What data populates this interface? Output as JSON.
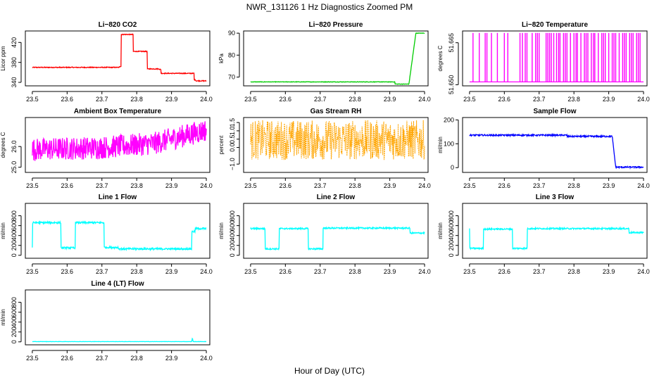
{
  "figure": {
    "title": "NWR_131126  1 Hz Diagnostics Zoomed PM",
    "xlabel": "Hour of Day (UTC)"
  },
  "colors": {
    "red": "#ff0000",
    "green": "#00cc00",
    "magenta": "#ff00ff",
    "orange": "#ffa500",
    "blue": "#0000ff",
    "cyan": "#00ffff"
  },
  "chart_data": [
    {
      "id": "co2",
      "type": "line",
      "title": "Li−820 CO2",
      "ylabel": "Licor ppm",
      "color": "red",
      "xlim": [
        23.48,
        24.01
      ],
      "ylim": [
        333,
        443
      ],
      "xticks": [
        "23.5",
        "23.6",
        "23.7",
        "23.8",
        "23.9",
        "24.0"
      ],
      "yticks": [
        "340",
        "380",
        "420"
      ],
      "yticks_v": [
        340,
        380,
        420
      ],
      "yticks_rot": true,
      "noise": 0.8,
      "x": [
        23.5,
        23.75,
        23.75,
        23.755,
        23.755,
        23.79,
        23.79,
        23.83,
        23.83,
        23.865,
        23.865,
        23.87,
        23.87,
        23.965,
        23.965,
        23.97,
        23.97,
        24.0
      ],
      "y": [
        370,
        370,
        372,
        372,
        436,
        436,
        402,
        402,
        367,
        367,
        366,
        366,
        358,
        358,
        345,
        345,
        343,
        343
      ]
    },
    {
      "id": "pressure",
      "type": "line",
      "title": "Li−820 Pressure",
      "ylabel": "kPa",
      "color": "green",
      "xlim": [
        23.48,
        24.01
      ],
      "ylim": [
        66,
        91
      ],
      "xticks": [
        "23.5",
        "23.6",
        "23.7",
        "23.8",
        "23.9",
        "24.0"
      ],
      "yticks": [
        "70",
        "80",
        "90"
      ],
      "yticks_v": [
        70,
        80,
        90
      ],
      "yticks_rot": false,
      "noise": 0.1,
      "x": [
        23.5,
        23.915,
        23.915,
        23.955,
        23.975,
        24.0
      ],
      "y": [
        67.8,
        67.8,
        66.8,
        66.8,
        90,
        90
      ]
    },
    {
      "id": "temp",
      "type": "line",
      "title": "Li−820 Temperature",
      "ylabel": "degrees C",
      "color": "magenta",
      "xlim": [
        23.48,
        24.01
      ],
      "ylim": [
        51.6496,
        51.6692
      ],
      "xticks": [
        "23.5",
        "23.6",
        "23.7",
        "23.8",
        "23.9",
        "24.0"
      ],
      "yticks": [
        "51.650",
        "51.665"
      ],
      "yticks_v": [
        51.65,
        51.665
      ],
      "yticks_rot": true,
      "noise": 0,
      "x": [
        23.5,
        24.0
      ],
      "y": [
        51.651,
        51.651
      ],
      "spikes": {
        "low": 51.651,
        "high": 51.6685,
        "positions": [
          23.51,
          23.528,
          23.545,
          23.55,
          23.563,
          23.58,
          23.6,
          23.61,
          23.645,
          23.652,
          23.66,
          23.665,
          23.68,
          23.69,
          23.695,
          23.7,
          23.72,
          23.725,
          23.73,
          23.735,
          23.742,
          23.75,
          23.756,
          23.76,
          23.77,
          23.775,
          23.78,
          23.79,
          23.8,
          23.806,
          23.81,
          23.82,
          23.83,
          23.835,
          23.84,
          23.85,
          23.856,
          23.86,
          23.87,
          23.88,
          23.885,
          23.89,
          23.9,
          23.91,
          23.915,
          23.92,
          23.93,
          23.94,
          23.945,
          23.95,
          23.96,
          23.965,
          23.97,
          23.98,
          23.985,
          23.99
        ]
      }
    },
    {
      "id": "boxtemp",
      "type": "line",
      "title": "Ambient Box Temperature",
      "ylabel": "degrees C",
      "color": "magenta",
      "xlim": [
        23.48,
        24.01
      ],
      "ylim": [
        24.75,
        27.4
      ],
      "xticks": [
        "23.5",
        "23.6",
        "23.7",
        "23.8",
        "23.9",
        "24.0"
      ],
      "yticks": [
        "25.0",
        "26.0"
      ],
      "yticks_v": [
        25,
        26
      ],
      "yticks_rot": true,
      "noise": 0.55,
      "x": [
        23.5,
        23.7,
        23.85,
        24.0
      ],
      "y": [
        25.85,
        25.95,
        26.15,
        26.8
      ]
    },
    {
      "id": "rh",
      "type": "line",
      "title": "Gas Stream RH",
      "ylabel": "percent",
      "color": "orange",
      "xlim": [
        23.48,
        24.01
      ],
      "ylim": [
        -1.5,
        1.8
      ],
      "xticks": [
        "23.5",
        "23.6",
        "23.7",
        "23.8",
        "23.9",
        "24.0"
      ],
      "yticks": [
        "−1.0",
        "0.0",
        "0.5",
        "1.0",
        "1.5"
      ],
      "yticks_v": [
        -1,
        0,
        0.5,
        1,
        1.5
      ],
      "yticks_rot": true,
      "noise": 1.2,
      "dashed": true,
      "x": [
        23.5,
        24.0
      ],
      "y": [
        0.45,
        0.45
      ]
    },
    {
      "id": "sampleflow",
      "type": "line",
      "title": "Sample Flow",
      "ylabel": "ml/min",
      "color": "blue",
      "xlim": [
        23.48,
        24.01
      ],
      "ylim": [
        -20,
        210
      ],
      "xticks": [
        "23.5",
        "23.6",
        "23.7",
        "23.8",
        "23.9",
        "24.0"
      ],
      "yticks": [
        "0",
        "100",
        "200"
      ],
      "yticks_v": [
        0,
        100,
        200
      ],
      "yticks_rot": false,
      "noise": 3,
      "x": [
        23.5,
        23.78,
        23.78,
        23.91,
        23.92,
        24.0
      ],
      "y": [
        136,
        136,
        131,
        131,
        2,
        2
      ]
    },
    {
      "id": "line1",
      "type": "line",
      "title": "Line 1 Flow",
      "ylabel": "ml/min",
      "color": "cyan",
      "xlim": [
        23.48,
        24.01
      ],
      "ylim": [
        -60,
        1050
      ],
      "xticks": [
        "23.5",
        "23.6",
        "23.7",
        "23.8",
        "23.9",
        "24.0"
      ],
      "yticks": [
        "0",
        "200",
        "400",
        "600",
        "800"
      ],
      "yticks_v": [
        0,
        200,
        400,
        600,
        800
      ],
      "yticks_rot": true,
      "noise": 18,
      "x": [
        23.5,
        23.5,
        23.502,
        23.582,
        23.582,
        23.624,
        23.624,
        23.706,
        23.706,
        23.748,
        23.748,
        23.958,
        23.958,
        23.968,
        23.968,
        24.0
      ],
      "y": [
        150,
        640,
        660,
        660,
        150,
        150,
        660,
        660,
        160,
        160,
        130,
        130,
        480,
        480,
        540,
        540
      ]
    },
    {
      "id": "line2",
      "type": "line",
      "title": "Line 2 Flow",
      "ylabel": "ml/min",
      "color": "cyan",
      "xlim": [
        23.48,
        24.01
      ],
      "ylim": [
        -60,
        1050
      ],
      "xticks": [
        "23.5",
        "23.6",
        "23.7",
        "23.8",
        "23.9",
        "24.0"
      ],
      "yticks": [
        "0",
        "200",
        "400",
        "600",
        "800"
      ],
      "yticks_v": [
        0,
        200,
        400,
        600,
        800
      ],
      "yticks_rot": true,
      "noise": 14,
      "x": [
        23.5,
        23.542,
        23.542,
        23.582,
        23.582,
        23.666,
        23.666,
        23.708,
        23.708,
        23.958,
        23.958,
        24.0
      ],
      "y": [
        540,
        540,
        130,
        130,
        540,
        540,
        130,
        130,
        550,
        550,
        450,
        450
      ]
    },
    {
      "id": "line3",
      "type": "line",
      "title": "Line 3 Flow",
      "ylabel": "ml/min",
      "color": "cyan",
      "xlim": [
        23.48,
        24.01
      ],
      "ylim": [
        -60,
        1050
      ],
      "xticks": [
        "23.5",
        "23.6",
        "23.7",
        "23.8",
        "23.9",
        "24.0"
      ],
      "yticks": [
        "0",
        "200",
        "400",
        "600",
        "800"
      ],
      "yticks_v": [
        0,
        200,
        400,
        600,
        800
      ],
      "yticks_rot": true,
      "noise": 14,
      "x": [
        23.5,
        23.5,
        23.502,
        23.54,
        23.54,
        23.624,
        23.624,
        23.666,
        23.666,
        23.958,
        23.958,
        24.0
      ],
      "y": [
        540,
        140,
        140,
        140,
        530,
        530,
        140,
        140,
        540,
        540,
        460,
        460
      ]
    },
    {
      "id": "line4",
      "type": "line",
      "title": "Line 4 (LT) Flow",
      "ylabel": "ml/min",
      "color": "cyan",
      "xlim": [
        23.48,
        24.01
      ],
      "ylim": [
        -60,
        1050
      ],
      "xticks": [
        "23.5",
        "23.6",
        "23.7",
        "23.8",
        "23.9",
        "24.0"
      ],
      "yticks": [
        "0",
        "200",
        "400",
        "600",
        "800"
      ],
      "yticks_v": [
        0,
        200,
        400,
        600,
        800
      ],
      "yticks_rot": true,
      "noise": 2,
      "x": [
        23.5,
        23.958,
        23.96,
        23.962,
        24.0
      ],
      "y": [
        5,
        5,
        80,
        5,
        5
      ]
    }
  ]
}
